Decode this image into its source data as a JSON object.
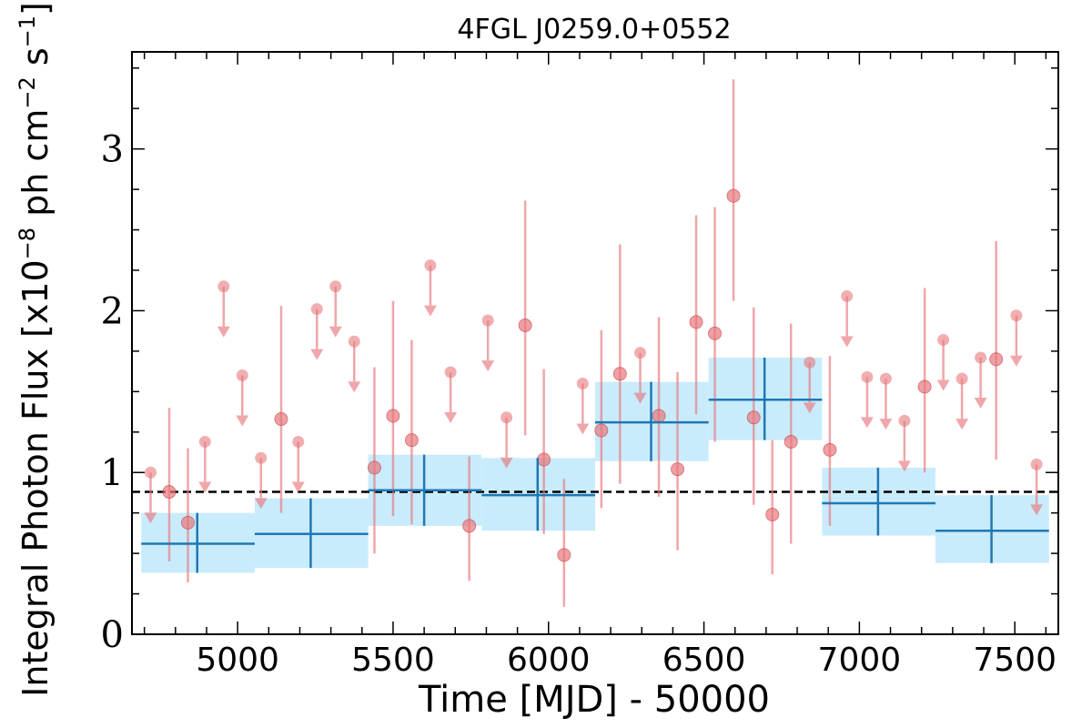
{
  "chart_data": {
    "type": "scatter",
    "title": "4FGL J0259.0+0552",
    "xlabel": "Time [MJD] - 50000",
    "ylabel_main": "Integral Photon Flux [x10",
    "ylabel_exp1": "−8",
    "ylabel_mid": " ph cm",
    "ylabel_exp2": "−2",
    "ylabel_mid2": " s",
    "ylabel_exp3": "−1",
    "ylabel_end": "]",
    "xlim": [
      4660,
      7640
    ],
    "ylim": [
      0,
      3.6
    ],
    "x_ticks": [
      5000,
      5500,
      6000,
      6500,
      7000,
      7500
    ],
    "x_tick_labels": [
      "5000",
      "5500",
      "6000",
      "6500",
      "7000",
      "7500"
    ],
    "y_ticks": [
      0,
      1,
      2,
      3
    ],
    "y_tick_labels": [
      "0",
      "1",
      "2",
      "3"
    ],
    "average_flux": 0.88,
    "colors": {
      "points": "#e8787c",
      "binned_line": "#1f77b4",
      "binned_band": "#c9ecfc",
      "average_line": "#000000"
    },
    "detections": [
      {
        "x": 4780,
        "y": 0.88,
        "ylo": 0.45,
        "yhi": 1.4
      },
      {
        "x": 4840,
        "y": 0.69,
        "ylo": 0.32,
        "yhi": 1.15
      },
      {
        "x": 5140,
        "y": 1.33,
        "ylo": 0.75,
        "yhi": 2.03
      },
      {
        "x": 5440,
        "y": 1.03,
        "ylo": 0.5,
        "yhi": 1.65
      },
      {
        "x": 5500,
        "y": 1.35,
        "ylo": 0.73,
        "yhi": 2.06
      },
      {
        "x": 5560,
        "y": 1.2,
        "ylo": 0.68,
        "yhi": 1.82
      },
      {
        "x": 5745,
        "y": 0.67,
        "ylo": 0.33,
        "yhi": 1.1
      },
      {
        "x": 5925,
        "y": 1.91,
        "ylo": 1.23,
        "yhi": 2.68
      },
      {
        "x": 5985,
        "y": 1.08,
        "ylo": 0.62,
        "yhi": 1.64
      },
      {
        "x": 6050,
        "y": 0.49,
        "ylo": 0.17,
        "yhi": 0.96
      },
      {
        "x": 6170,
        "y": 1.26,
        "ylo": 0.78,
        "yhi": 1.88
      },
      {
        "x": 6230,
        "y": 1.61,
        "ylo": 0.93,
        "yhi": 2.41
      },
      {
        "x": 6355,
        "y": 1.35,
        "ylo": 0.85,
        "yhi": 1.96
      },
      {
        "x": 6415,
        "y": 1.02,
        "ylo": 0.52,
        "yhi": 1.62
      },
      {
        "x": 6475,
        "y": 1.93,
        "ylo": 1.36,
        "yhi": 2.59
      },
      {
        "x": 6535,
        "y": 1.86,
        "ylo": 1.19,
        "yhi": 2.64
      },
      {
        "x": 6595,
        "y": 2.71,
        "ylo": 2.06,
        "yhi": 3.43
      },
      {
        "x": 6660,
        "y": 1.34,
        "ylo": 0.8,
        "yhi": 2.02
      },
      {
        "x": 6720,
        "y": 0.74,
        "ylo": 0.37,
        "yhi": 1.2
      },
      {
        "x": 6780,
        "y": 1.19,
        "ylo": 0.56,
        "yhi": 1.92
      },
      {
        "x": 6905,
        "y": 1.14,
        "ylo": 0.67,
        "yhi": 1.72
      },
      {
        "x": 7210,
        "y": 1.53,
        "ylo": 1.0,
        "yhi": 2.14
      },
      {
        "x": 7440,
        "y": 1.7,
        "ylo": 1.08,
        "yhi": 2.43
      }
    ],
    "upper_limits": [
      {
        "x": 4720,
        "y": 1.0
      },
      {
        "x": 4895,
        "y": 1.19
      },
      {
        "x": 4955,
        "y": 2.15
      },
      {
        "x": 5015,
        "y": 1.6
      },
      {
        "x": 5075,
        "y": 1.09
      },
      {
        "x": 5195,
        "y": 1.19
      },
      {
        "x": 5255,
        "y": 2.01
      },
      {
        "x": 5315,
        "y": 2.15
      },
      {
        "x": 5375,
        "y": 1.81
      },
      {
        "x": 5620,
        "y": 2.28
      },
      {
        "x": 5685,
        "y": 1.62
      },
      {
        "x": 5805,
        "y": 1.94
      },
      {
        "x": 5865,
        "y": 1.34
      },
      {
        "x": 6110,
        "y": 1.55
      },
      {
        "x": 6295,
        "y": 1.74
      },
      {
        "x": 6840,
        "y": 1.68
      },
      {
        "x": 6960,
        "y": 2.09
      },
      {
        "x": 7025,
        "y": 1.59
      },
      {
        "x": 7085,
        "y": 1.58
      },
      {
        "x": 7145,
        "y": 1.32
      },
      {
        "x": 7270,
        "y": 1.82
      },
      {
        "x": 7330,
        "y": 1.58
      },
      {
        "x": 7390,
        "y": 1.71
      },
      {
        "x": 7505,
        "y": 1.97
      },
      {
        "x": 7570,
        "y": 1.05
      }
    ],
    "binned": [
      {
        "xlo": 4690,
        "xhi": 5055,
        "xc": 4870,
        "y": 0.56,
        "ylo": 0.38,
        "yhi": 0.75
      },
      {
        "xlo": 5055,
        "xhi": 5420,
        "xc": 5235,
        "y": 0.62,
        "ylo": 0.41,
        "yhi": 0.84
      },
      {
        "xlo": 5420,
        "xhi": 5785,
        "xc": 5600,
        "y": 0.89,
        "ylo": 0.67,
        "yhi": 1.11
      },
      {
        "xlo": 5785,
        "xhi": 6150,
        "xc": 5965,
        "y": 0.86,
        "ylo": 0.64,
        "yhi": 1.09
      },
      {
        "xlo": 6150,
        "xhi": 6515,
        "xc": 6330,
        "y": 1.31,
        "ylo": 1.07,
        "yhi": 1.56
      },
      {
        "xlo": 6515,
        "xhi": 6880,
        "xc": 6695,
        "y": 1.45,
        "ylo": 1.2,
        "yhi": 1.71
      },
      {
        "xlo": 6880,
        "xhi": 7245,
        "xc": 7060,
        "y": 0.81,
        "ylo": 0.61,
        "yhi": 1.03
      },
      {
        "xlo": 7245,
        "xhi": 7610,
        "xc": 7425,
        "y": 0.64,
        "ylo": 0.44,
        "yhi": 0.86
      }
    ]
  }
}
